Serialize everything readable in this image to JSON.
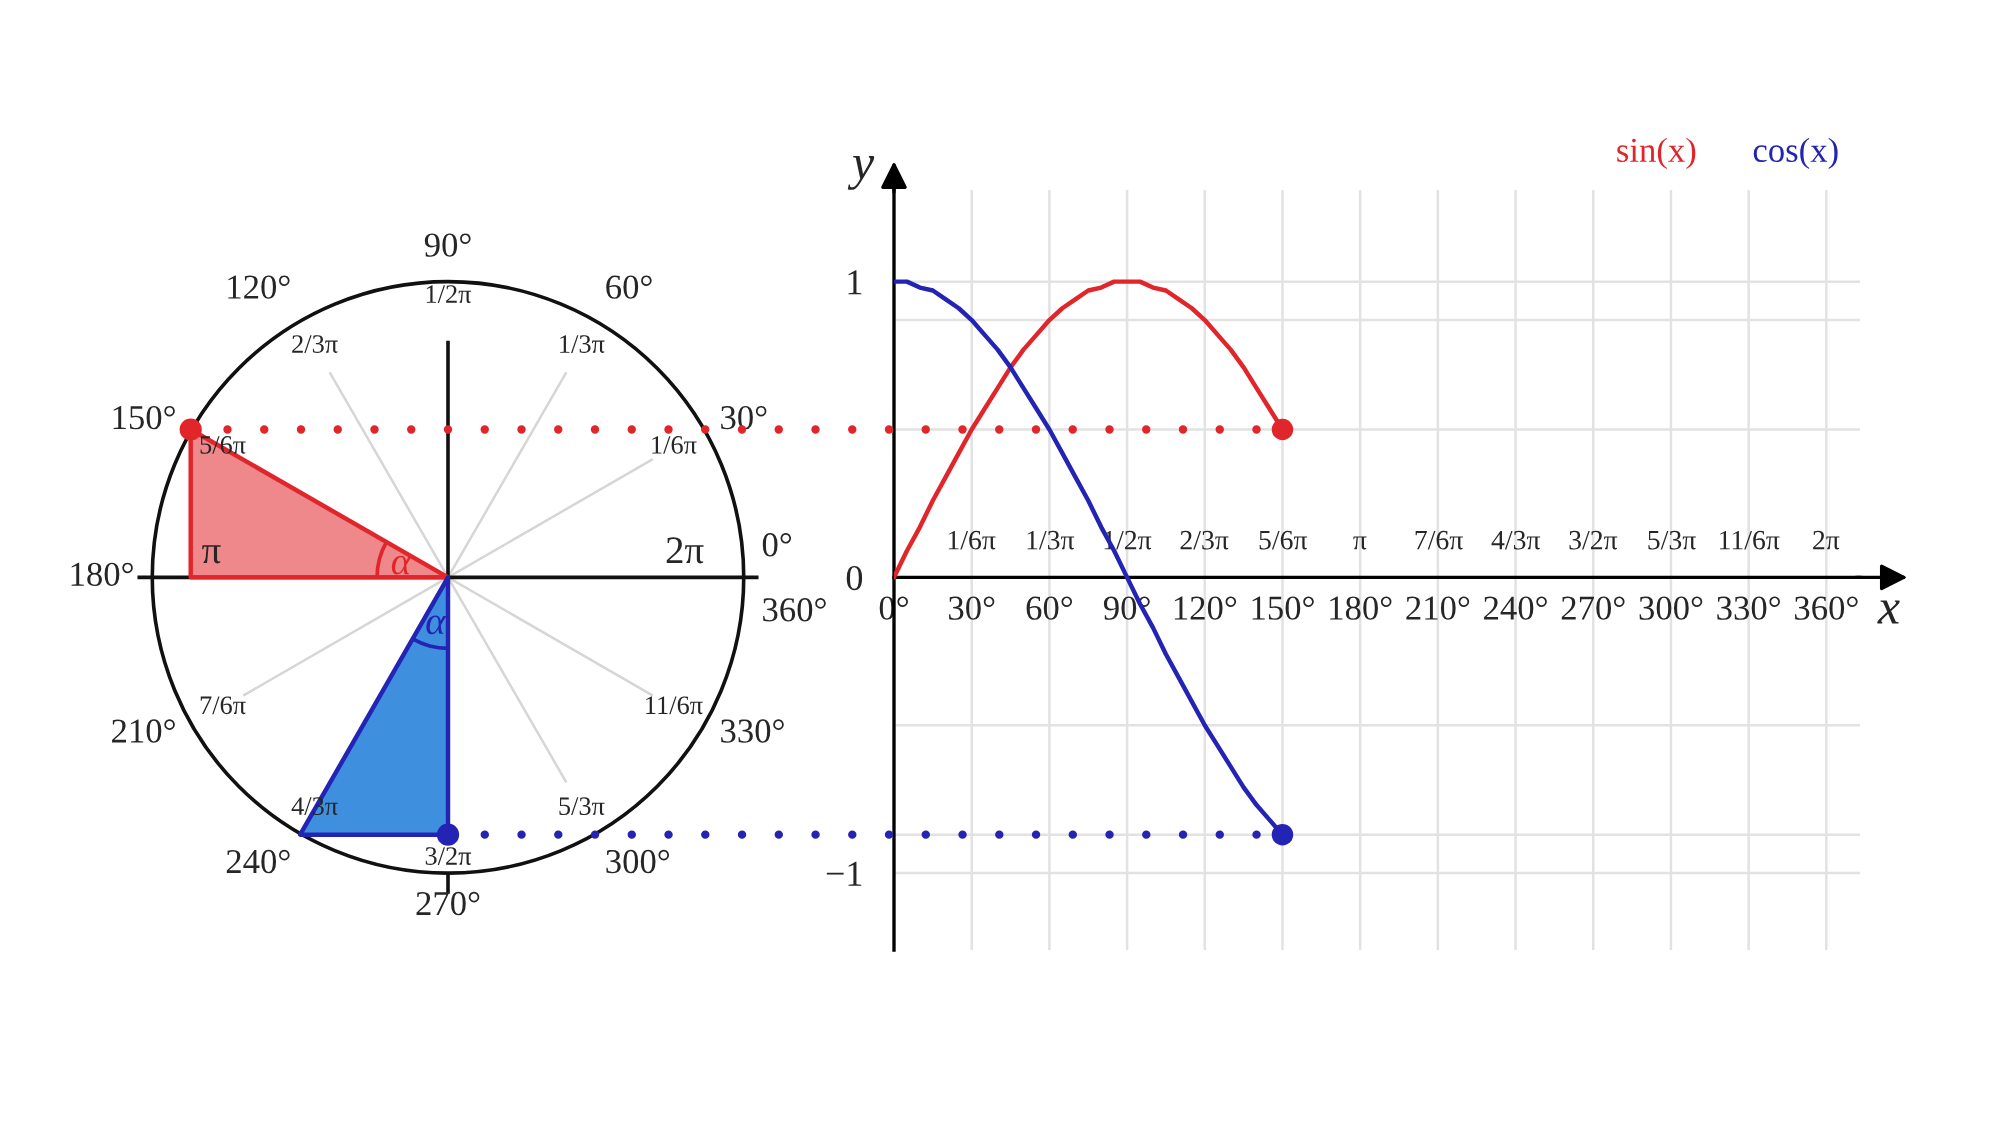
{
  "chart_data": [
    {
      "type": "other",
      "annotations": [
        "0°",
        "30°",
        "60°",
        "90°",
        "120°",
        "150°",
        "180°",
        "210°",
        "240°",
        "270°",
        "300°",
        "330°",
        "360°",
        "2π",
        "1/6π",
        "1/3π",
        "1/2π",
        "2/3π",
        "5/6π",
        "π",
        "7/6π",
        "4/3π",
        "3/2π",
        "5/3π",
        "11/6π",
        "α",
        "α"
      ]
    },
    {
      "type": "line",
      "x": [
        0,
        5,
        10,
        15,
        20,
        25,
        30,
        35,
        40,
        45,
        50,
        55,
        60,
        65,
        70,
        75,
        80,
        85,
        90,
        95,
        100,
        105,
        110,
        115,
        120,
        125,
        130,
        135,
        140,
        145,
        150
      ],
      "series": [
        {
          "name": "sin(x)",
          "color": "#e0262b",
          "values": [
            0,
            0.09,
            0.17,
            0.26,
            0.34,
            0.42,
            0.5,
            0.57,
            0.64,
            0.71,
            0.77,
            0.82,
            0.87,
            0.91,
            0.94,
            0.97,
            0.98,
            1.0,
            1,
            1.0,
            0.98,
            0.97,
            0.94,
            0.91,
            0.87,
            0.82,
            0.77,
            0.71,
            0.64,
            0.57,
            0.5
          ]
        },
        {
          "name": "cos(x)",
          "color": "#2424b4",
          "values": [
            1,
            1.0,
            0.98,
            0.97,
            0.94,
            0.91,
            0.87,
            0.82,
            0.77,
            0.71,
            0.64,
            0.57,
            0.5,
            0.42,
            0.34,
            0.26,
            0.17,
            0.09,
            0,
            -0.09,
            -0.17,
            -0.26,
            -0.34,
            -0.42,
            -0.5,
            -0.57,
            -0.64,
            -0.71,
            -0.77,
            -0.82,
            -0.87
          ]
        },
        {
          "type": "scatter",
          "marker": "circle",
          "color": "#e0262b",
          "x": [
            150
          ],
          "values": [
            0.5
          ]
        },
        {
          "type": "scatter",
          "marker": "circle",
          "color": "#2424b4",
          "x": [
            150
          ],
          "values": [
            -0.87
          ]
        }
      ],
      "xlabel": "x",
      "ylabel": "y",
      "xlim": [
        0,
        373
      ],
      "ylim": [
        -1.26,
        1.31
      ],
      "x2lim": [
        0,
        6.51
      ],
      "xticks": [
        {
          "value": 0,
          "label": "0°"
        },
        {
          "value": 30,
          "label": "30°"
        },
        {
          "value": 60,
          "label": "60°"
        },
        {
          "value": 90,
          "label": "90°"
        },
        {
          "value": 120,
          "label": "120°"
        },
        {
          "value": 150,
          "label": "150°"
        },
        {
          "value": 180,
          "label": "180°"
        },
        {
          "value": 210,
          "label": "210°"
        },
        {
          "value": 240,
          "label": "240°"
        },
        {
          "value": 270,
          "label": "270°"
        },
        {
          "value": 300,
          "label": "300°"
        },
        {
          "value": 330,
          "label": "330°"
        },
        {
          "value": 360,
          "label": "360°"
        }
      ],
      "x2ticks": [
        {
          "value": 0.52,
          "label": "1/6π"
        },
        {
          "value": 1.05,
          "label": "1/3π"
        },
        {
          "value": 1.57,
          "label": "1/2π"
        },
        {
          "value": 2.09,
          "label": "2/3π"
        },
        {
          "value": 2.62,
          "label": "5/6π"
        },
        {
          "value": 3.14,
          "label": "π"
        },
        {
          "value": 3.67,
          "label": "7/6π"
        },
        {
          "value": 4.19,
          "label": "4/3π"
        },
        {
          "value": 4.71,
          "label": "3/2π"
        },
        {
          "value": 5.24,
          "label": "5/3π"
        },
        {
          "value": 5.76,
          "label": "11/6π"
        },
        {
          "value": 6.28,
          "label": "2π"
        }
      ],
      "yticks": [
        {
          "value": -1,
          "label": "−1"
        },
        {
          "value": -0.87,
          "label": null
        },
        {
          "value": -0.5,
          "label": null
        },
        0,
        {
          "value": 0.5,
          "label": null
        },
        {
          "value": 0.87,
          "label": null
        },
        1
      ],
      "grid": true,
      "legend": "top right",
      "ref_lines": [
        {
          "axis": "y",
          "value": 0.5,
          "color": "#e0262b",
          "line_style": "dotted"
        },
        {
          "axis": "y",
          "value": -0.87,
          "color": "#2424b4",
          "line_style": "dotted"
        }
      ]
    }
  ]
}
